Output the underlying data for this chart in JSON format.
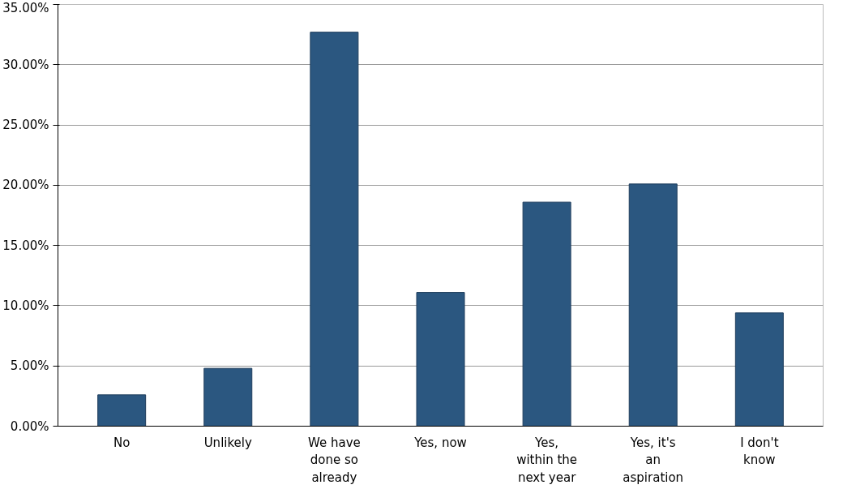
{
  "chart_data": {
    "type": "bar",
    "categories": [
      "No",
      "Unlikely",
      "We have done so already",
      "Yes, now",
      "Yes, within the next year",
      "Yes, it's an aspiration",
      "I don't know"
    ],
    "values": [
      2.6,
      4.8,
      32.7,
      11.1,
      18.6,
      20.1,
      9.4
    ],
    "color": "#2b5780",
    "ylim": [
      0,
      35
    ],
    "yticks": [
      {
        "value": 0,
        "label": "0.00%"
      },
      {
        "value": 5,
        "label": "5.00%"
      },
      {
        "value": 10,
        "label": "10.00%"
      },
      {
        "value": 15,
        "label": "15.00%"
      },
      {
        "value": 20,
        "label": "20.00%"
      },
      {
        "value": 25,
        "label": "25.00%"
      },
      {
        "value": 30,
        "label": "30.00%"
      },
      {
        "value": 35,
        "label": "35.00%"
      }
    ],
    "grid": "y"
  }
}
